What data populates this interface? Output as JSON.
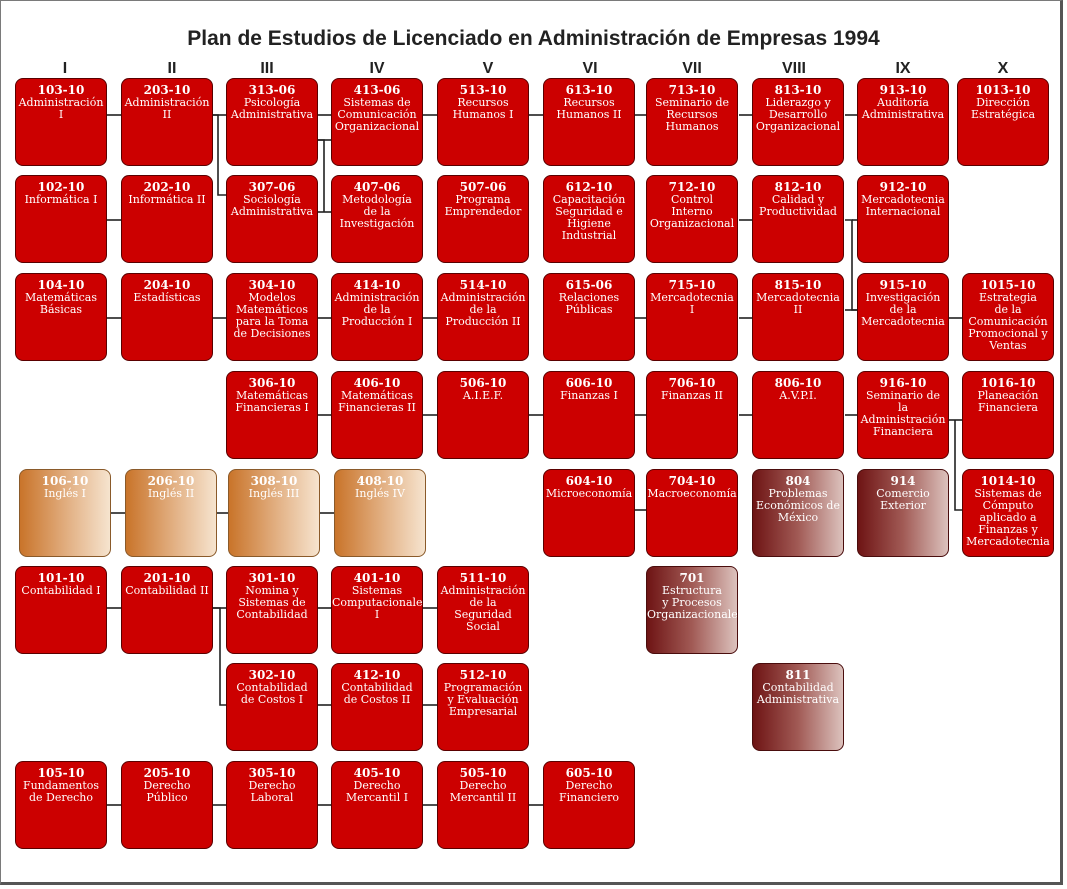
{
  "title": "Plan de Estudios de Licenciado en Administración de Empresas 1994",
  "semesters": [
    "I",
    "II",
    "III",
    "IV",
    "V",
    "VI",
    "VII",
    "VIII",
    "IX",
    "X"
  ],
  "courses": [
    {
      "id": "c103",
      "code": "103-10",
      "name": "Administración\nI",
      "style": "red"
    },
    {
      "id": "c203",
      "code": "203-10",
      "name": "Administración\nII",
      "style": "red"
    },
    {
      "id": "c313",
      "code": "313-06",
      "name": "Psicología\nAdministrativa",
      "style": "red"
    },
    {
      "id": "c413",
      "code": "413-06",
      "name": "Sistemas de\nComunicación\nOrganizacional",
      "style": "red"
    },
    {
      "id": "c513",
      "code": "513-10",
      "name": "Recursos\nHumanos I",
      "style": "red"
    },
    {
      "id": "c613",
      "code": "613-10",
      "name": "Recursos\nHumanos II",
      "style": "red"
    },
    {
      "id": "c713",
      "code": "713-10",
      "name": "Seminario de\nRecursos\nHumanos",
      "style": "red"
    },
    {
      "id": "c813",
      "code": "813-10",
      "name": "Liderazgo y\nDesarrollo\nOrganizacional",
      "style": "red"
    },
    {
      "id": "c913",
      "code": "913-10",
      "name": "Auditoría\nAdministrativa",
      "style": "red"
    },
    {
      "id": "c1013",
      "code": "1013-10",
      "name": "Dirección\nEstratégica",
      "style": "red"
    },
    {
      "id": "c102",
      "code": "102-10",
      "name": "Informática I",
      "style": "red"
    },
    {
      "id": "c202",
      "code": "202-10",
      "name": "Informática II",
      "style": "red"
    },
    {
      "id": "c307",
      "code": "307-06",
      "name": "Sociología\nAdministrativa",
      "style": "red"
    },
    {
      "id": "c407",
      "code": "407-06",
      "name": "Metodología\nde la\nInvestigación",
      "style": "red"
    },
    {
      "id": "c507",
      "code": "507-06",
      "name": "Programa\nEmprendedor",
      "style": "red"
    },
    {
      "id": "c612",
      "code": "612-10",
      "name": "Capacitación\nSeguridad e\nHigiene\nIndustrial",
      "style": "red"
    },
    {
      "id": "c712",
      "code": "712-10",
      "name": "Control\nInterno\nOrganizacional",
      "style": "red"
    },
    {
      "id": "c812",
      "code": "812-10",
      "name": "Calidad y\nProductividad",
      "style": "red"
    },
    {
      "id": "c912",
      "code": "912-10",
      "name": "Mercadotecnia\nInternacional",
      "style": "red"
    },
    {
      "id": "c104",
      "code": "104-10",
      "name": "Matemáticas\nBásicas",
      "style": "red"
    },
    {
      "id": "c204",
      "code": "204-10",
      "name": "Estadísticas",
      "style": "red"
    },
    {
      "id": "c304",
      "code": "304-10",
      "name": "Modelos\nMatemáticos\npara la Toma\nde Decisiones",
      "style": "red"
    },
    {
      "id": "c414",
      "code": "414-10",
      "name": "Administración\nde la\nProducción I",
      "style": "red"
    },
    {
      "id": "c514",
      "code": "514-10",
      "name": "Administración\nde la Producción II",
      "style": "red"
    },
    {
      "id": "c615",
      "code": "615-06",
      "name": "Relaciones\nPúblicas",
      "style": "red"
    },
    {
      "id": "c715",
      "code": "715-10",
      "name": "Mercadotecnia\nI",
      "style": "red"
    },
    {
      "id": "c815",
      "code": "815-10",
      "name": "Mercadotecnia\nII",
      "style": "red"
    },
    {
      "id": "c915",
      "code": "915-10",
      "name": "Investigación\nde la\nMercadotecnia",
      "style": "red"
    },
    {
      "id": "c1015",
      "code": "1015-10",
      "name": "Estrategia\nde la\nComunicación\nPromocional y\nVentas",
      "style": "red"
    },
    {
      "id": "c306",
      "code": "306-10",
      "name": "Matemáticas\nFinancieras I",
      "style": "red"
    },
    {
      "id": "c406",
      "code": "406-10",
      "name": "Matemáticas\nFinancieras II",
      "style": "red"
    },
    {
      "id": "c506",
      "code": "506-10",
      "name": "A.I.E.F.",
      "style": "red"
    },
    {
      "id": "c606",
      "code": "606-10",
      "name": "Finanzas I",
      "style": "red"
    },
    {
      "id": "c706",
      "code": "706-10",
      "name": "Finanzas II",
      "style": "red"
    },
    {
      "id": "c806",
      "code": "806-10",
      "name": "A.V.P.I.",
      "style": "red"
    },
    {
      "id": "c916",
      "code": "916-10",
      "name": "Seminario de\nla\nAdministración\nFinanciera",
      "style": "red"
    },
    {
      "id": "c1016",
      "code": "1016-10",
      "name": "Planeación\nFinanciera",
      "style": "red"
    },
    {
      "id": "c106",
      "code": "106-10",
      "name": "Inglés I",
      "style": "eng"
    },
    {
      "id": "c206",
      "code": "206-10",
      "name": "Inglés II",
      "style": "eng"
    },
    {
      "id": "c308",
      "code": "308-10",
      "name": "Inglés III",
      "style": "eng"
    },
    {
      "id": "c408",
      "code": "408-10",
      "name": "Inglés IV",
      "style": "eng"
    },
    {
      "id": "c604",
      "code": "604-10",
      "name": "Microeconomía",
      "style": "red"
    },
    {
      "id": "c704",
      "code": "704-10",
      "name": "Macroeconomía",
      "style": "red"
    },
    {
      "id": "c804",
      "code": "804",
      "name": "Problemas\nEconómicos de\nMéxico",
      "style": "brn"
    },
    {
      "id": "c914",
      "code": "914",
      "name": "Comercio\nExterior",
      "style": "brn"
    },
    {
      "id": "c1014",
      "code": "1014-10",
      "name": "Sistemas de\nCómputo\naplicado a\nFinanzas y\nMercadotecnia",
      "style": "red"
    },
    {
      "id": "c101",
      "code": "101-10",
      "name": "Contabilidad I",
      "style": "red"
    },
    {
      "id": "c201",
      "code": "201-10",
      "name": "Contabilidad II",
      "style": "red"
    },
    {
      "id": "c301",
      "code": "301-10",
      "name": "Nomina y\nSistemas de\nContabilidad",
      "style": "red"
    },
    {
      "id": "c401",
      "code": "401-10",
      "name": "Sistemas\nComputacionales\nI",
      "style": "red"
    },
    {
      "id": "c511",
      "code": "511-10",
      "name": "Administración\nde la\nSeguridad\nSocial",
      "style": "red"
    },
    {
      "id": "c701",
      "code": "701",
      "name": "Estructura\ny Procesos\nOrganizacionales",
      "style": "brn"
    },
    {
      "id": "c302",
      "code": "302-10",
      "name": "Contabilidad\nde Costos I",
      "style": "red"
    },
    {
      "id": "c412",
      "code": "412-10",
      "name": "Contabilidad\nde Costos II",
      "style": "red"
    },
    {
      "id": "c512",
      "code": "512-10",
      "name": "Programación\ny Evaluación\nEmpresarial",
      "style": "red"
    },
    {
      "id": "c811",
      "code": "811",
      "name": "Contabilidad\nAdministrativa",
      "style": "brn"
    },
    {
      "id": "c105",
      "code": "105-10",
      "name": "Fundamentos\nde Derecho",
      "style": "red"
    },
    {
      "id": "c205",
      "code": "205-10",
      "name": "Derecho\nPúblico",
      "style": "red"
    },
    {
      "id": "c305",
      "code": "305-10",
      "name": "Derecho\nLaboral",
      "style": "red"
    },
    {
      "id": "c405",
      "code": "405-10",
      "name": "Derecho\nMercantil I",
      "style": "red"
    },
    {
      "id": "c505",
      "code": "505-10",
      "name": "Derecho\nMercantil II",
      "style": "red"
    },
    {
      "id": "c605",
      "code": "605-10",
      "name": "Derecho\nFinanciero",
      "style": "red"
    }
  ]
}
